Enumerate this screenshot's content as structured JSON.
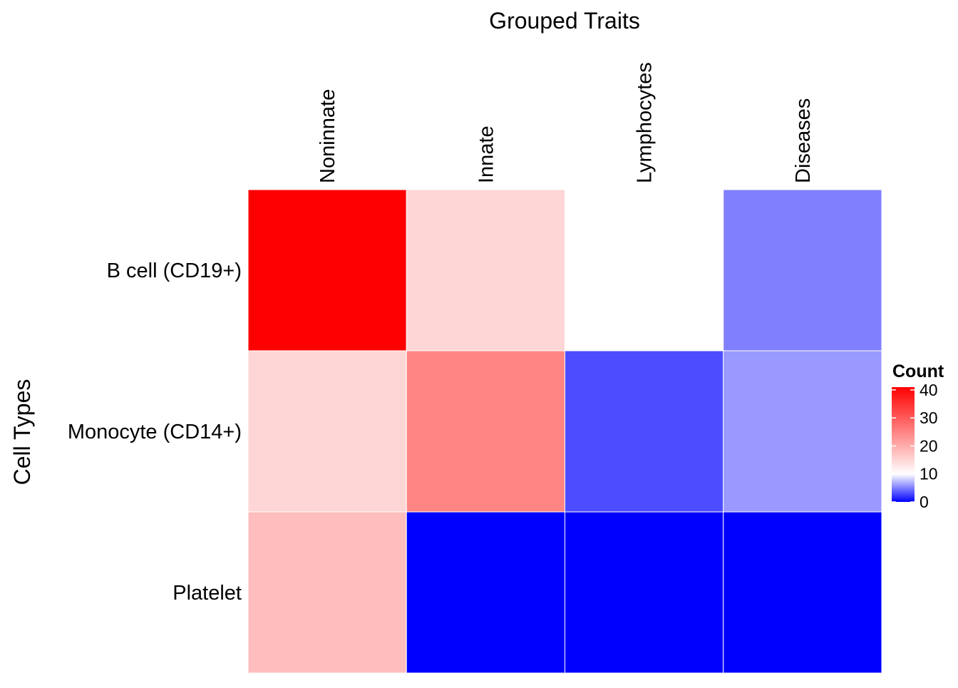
{
  "chart_data": {
    "type": "heatmap",
    "title": "Grouped Traits",
    "xlabel": "Grouped Traits",
    "ylabel": "Cell Types",
    "x_categories": [
      "Noninnate",
      "Innate",
      "Lymphocytes",
      "Diseases"
    ],
    "y_categories": [
      "B cell (CD19+)",
      "Monocyte (CD14+)",
      "Platelet"
    ],
    "values": [
      [
        41,
        15,
        10,
        5
      ],
      [
        15,
        25,
        3,
        6
      ],
      [
        18,
        0,
        0,
        0
      ]
    ],
    "color_scale": {
      "low": "#0000ff",
      "mid": "#ffffff",
      "high": "#ff0000",
      "midpoint": 10,
      "range": [
        0,
        41
      ]
    },
    "legend": {
      "title": "Count",
      "ticks": [
        0,
        10,
        20,
        30,
        40
      ],
      "placement": "right"
    },
    "x_axis_position": "top",
    "grid": false
  }
}
